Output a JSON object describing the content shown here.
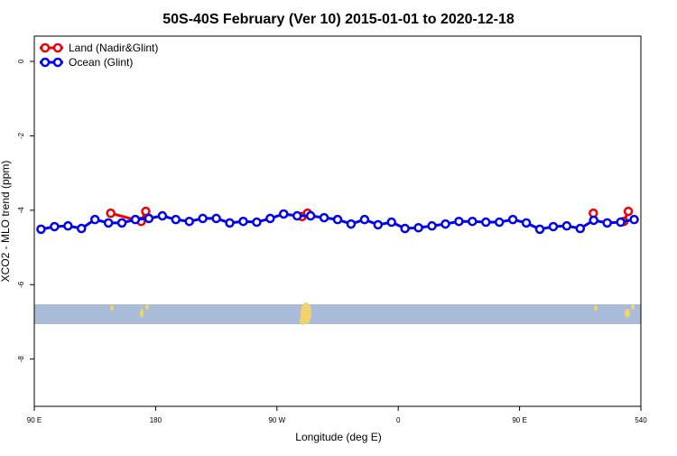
{
  "chart_data": {
    "type": "line",
    "title": "50S-40S February (Ver 10)   2015-01-01 to 2020-12-18",
    "xlabel": "Longitude (deg E)",
    "ylabel": "XCO2 - MLO trend (ppm)",
    "xlim": [
      90,
      540
    ],
    "ylim": [
      -9.27,
      0.68
    ],
    "xticks": [
      {
        "value": 90,
        "label": "90 E"
      },
      180,
      {
        "value": 270,
        "label": "90 W"
      },
      {
        "value": 360,
        "label": "0"
      },
      {
        "value": 450,
        "label": "90 E"
      },
      540
    ],
    "yticks": [
      0,
      -2,
      -4,
      -6,
      -8
    ],
    "legend": "top-left",
    "series": [
      {
        "name": "Land (Nadir&Glint)",
        "color": "#ee0000",
        "x": [
          146.7,
          169.3,
          172.7,
          null,
          288.7,
          292.7,
          null,
          504.7,
          null,
          527.3,
          530.7
        ],
        "values": [
          -4.08,
          -4.3,
          -4.03,
          null,
          -4.17,
          -4.08,
          null,
          -4.08,
          null,
          -4.3,
          -4.03
        ]
      },
      {
        "name": "Ocean (Glint)",
        "color": "#0000ee",
        "x": [
          95,
          105,
          115,
          125,
          135,
          145,
          155,
          165,
          175,
          185,
          195,
          205,
          215,
          225,
          235,
          245,
          255,
          265,
          275,
          285,
          295,
          305,
          315,
          325,
          335,
          345,
          355,
          365,
          375,
          385,
          395,
          405,
          415,
          425,
          435,
          445,
          455,
          465,
          475,
          485,
          495,
          505,
          515,
          525,
          535
        ],
        "values": [
          -4.51,
          -4.44,
          -4.42,
          -4.49,
          -4.25,
          -4.34,
          -4.34,
          -4.25,
          -4.22,
          -4.15,
          -4.25,
          -4.3,
          -4.22,
          -4.22,
          -4.34,
          -4.3,
          -4.32,
          -4.22,
          -4.1,
          -4.15,
          -4.15,
          -4.2,
          -4.25,
          -4.37,
          -4.25,
          -4.39,
          -4.32,
          -4.49,
          -4.47,
          -4.42,
          -4.37,
          -4.3,
          -4.3,
          -4.32,
          -4.32,
          -4.25,
          -4.34,
          -4.51,
          -4.44,
          -4.42,
          -4.49,
          -4.27,
          -4.34,
          -4.32,
          -4.25
        ]
      }
    ]
  }
}
